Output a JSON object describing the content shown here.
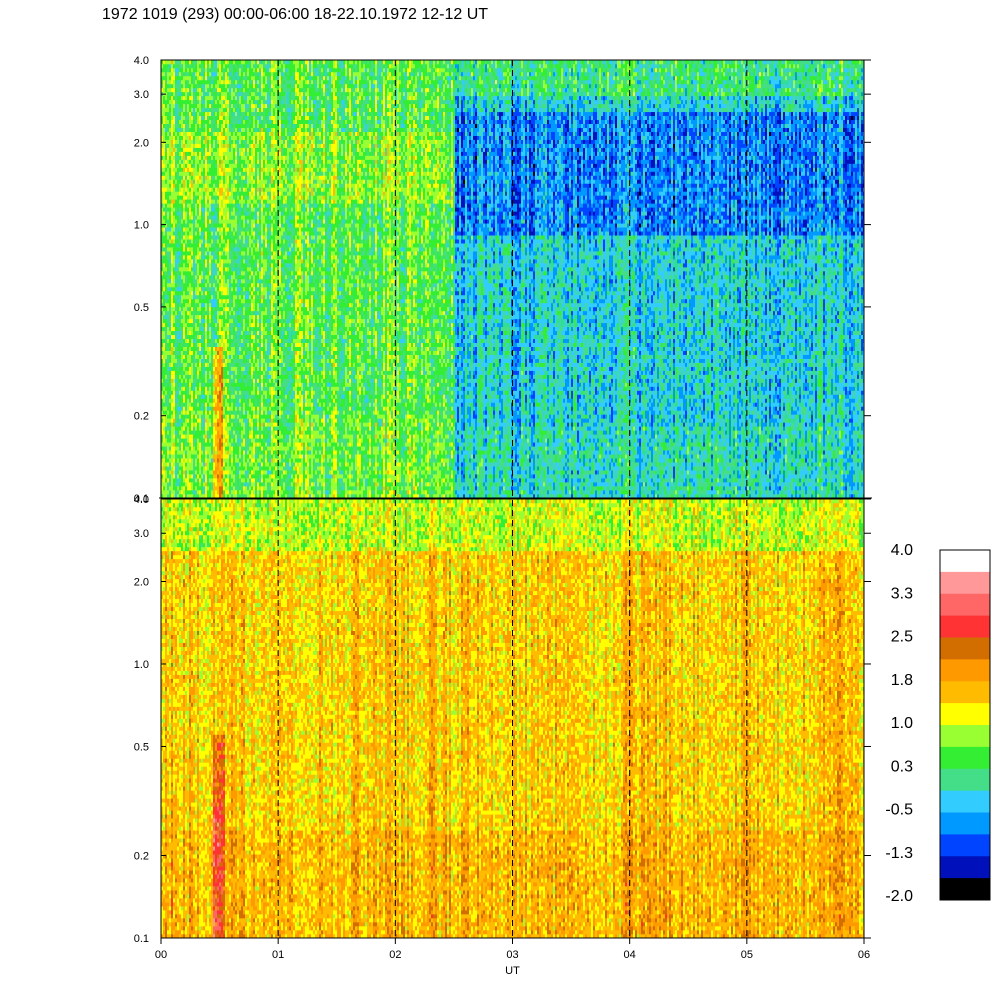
{
  "title": "1972 1019 (293) 00:00-06:00 18-22.10.1972  12-12 UT",
  "chart_data": [
    {
      "type": "heatmap",
      "panel": "upper",
      "x_range": [
        0,
        6
      ],
      "y_range": [
        0.1,
        4.0
      ],
      "y_scale": "log",
      "y_ticks": [
        "4.0",
        "3.0",
        "2.0",
        "1.0",
        "0.5",
        "0.2",
        "0.1"
      ],
      "y_tick_values": [
        4.0,
        3.0,
        2.0,
        1.0,
        0.5,
        0.2,
        0.1
      ],
      "description_regions": [
        {
          "x": [
            0.0,
            2.5
          ],
          "y": [
            0.1,
            4.0
          ],
          "dominant_level": 0.3
        },
        {
          "x": [
            2.5,
            6.0
          ],
          "y": [
            0.2,
            4.0
          ],
          "dominant_level": -0.5
        },
        {
          "x": [
            2.5,
            6.0
          ],
          "y": [
            1.0,
            2.0
          ],
          "dominant_level": -1.3
        },
        {
          "x": [
            0.45,
            0.5
          ],
          "y": [
            0.1,
            0.35
          ],
          "dominant_level": 1.5
        }
      ]
    },
    {
      "type": "heatmap",
      "panel": "lower",
      "x_range": [
        0,
        6
      ],
      "y_range": [
        0.1,
        4.0
      ],
      "y_scale": "log",
      "y_ticks": [
        "4.0",
        "3.0",
        "2.0",
        "1.0",
        "0.5",
        "0.2",
        "0.1"
      ],
      "y_tick_values": [
        4.0,
        3.0,
        2.0,
        1.0,
        0.5,
        0.2,
        0.1
      ],
      "description_regions": [
        {
          "x": [
            0.0,
            6.0
          ],
          "y": [
            0.1,
            4.0
          ],
          "dominant_level": 1.5
        },
        {
          "x": [
            0.0,
            6.0
          ],
          "y": [
            2.5,
            4.0
          ],
          "dominant_level": 1.0
        },
        {
          "x": [
            0.43,
            0.52
          ],
          "y": [
            0.1,
            0.5
          ],
          "dominant_level": 2.8
        }
      ]
    }
  ],
  "x_axis": {
    "label": "UT",
    "ticks": [
      "00",
      "01",
      "02",
      "03",
      "04",
      "05",
      "06"
    ],
    "tick_values": [
      0,
      1,
      2,
      3,
      4,
      5,
      6
    ],
    "dashed_gridlines": [
      1,
      2,
      3,
      4,
      5
    ]
  },
  "colorbar": {
    "labels": [
      "4.0",
      "3.3",
      "2.5",
      "1.8",
      "1.0",
      "0.3",
      "-0.5",
      "-1.3",
      "-2.0"
    ],
    "colors": [
      "#ffffff",
      "#ff9999",
      "#ff6666",
      "#ff3333",
      "#d26e00",
      "#ff9900",
      "#ffbb00",
      "#ffff00",
      "#99ff33",
      "#33ee33",
      "#44dd88",
      "#33ccff",
      "#0099ff",
      "#0044ff",
      "#0011bb",
      "#000000"
    ]
  }
}
